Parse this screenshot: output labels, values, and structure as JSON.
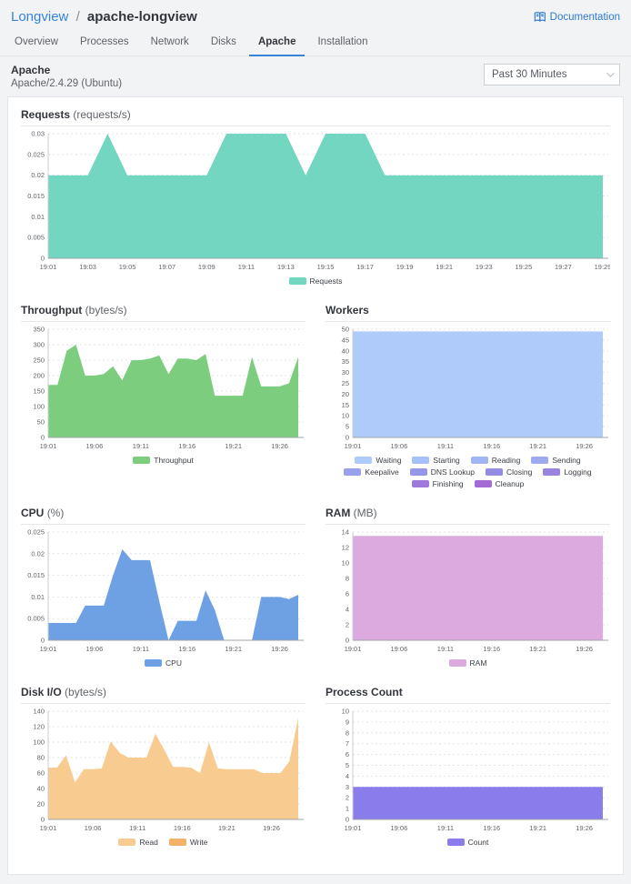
{
  "header": {
    "breadcrumb": {
      "root": "Longview",
      "separator": "/",
      "current": "apache-longview"
    },
    "documentation_label": "Documentation"
  },
  "tabs": [
    {
      "label": "Overview",
      "active": false
    },
    {
      "label": "Processes",
      "active": false
    },
    {
      "label": "Network",
      "active": false
    },
    {
      "label": "Disks",
      "active": false
    },
    {
      "label": "Apache",
      "active": true
    },
    {
      "label": "Installation",
      "active": false
    }
  ],
  "panel": {
    "title": "Apache",
    "subtitle": "Apache/2.4.29 (Ubuntu)",
    "time_range_selected": "Past 30 Minutes"
  },
  "colors": {
    "accent_blue": "#3683dc"
  },
  "chart_data": [
    {
      "id": "requests",
      "type": "area",
      "layout": "full",
      "title": "Requests",
      "unit": "(requests/s)",
      "y_max": 0.03,
      "y_ticks": [
        0,
        0.005,
        0.01,
        0.015,
        0.02,
        0.025,
        0.03
      ],
      "x_tick_step": 2,
      "x_labels": [
        "19:01",
        "19:03",
        "19:05",
        "19:07",
        "19:09",
        "19:11",
        "19:13",
        "19:15",
        "19:17",
        "19:19",
        "19:21",
        "19:23",
        "19:25",
        "19:27",
        "19:29"
      ],
      "series": [
        {
          "name": "Requests",
          "color": "#72d6c0",
          "values": [
            0.02,
            0.02,
            0.02,
            0.03,
            0.02,
            0.02,
            0.02,
            0.02,
            0.02,
            0.03,
            0.03,
            0.03,
            0.03,
            0.02,
            0.03,
            0.03,
            0.03,
            0.02,
            0.02,
            0.02,
            0.02,
            0.02,
            0.02,
            0.02,
            0.02,
            0.02,
            0.02,
            0.02,
            0.02
          ]
        }
      ]
    },
    {
      "id": "throughput",
      "type": "area",
      "layout": "half",
      "title": "Throughput",
      "unit": "(bytes/s)",
      "y_max": 350,
      "y_ticks": [
        0,
        50,
        100,
        150,
        200,
        250,
        300,
        350
      ],
      "x_tick_step": 5,
      "x_labels": [
        "19:01",
        "19:06",
        "19:11",
        "19:16",
        "19:21",
        "19:26"
      ],
      "series": [
        {
          "name": "Throughput",
          "color": "#7ccd7d",
          "values": [
            170,
            170,
            280,
            300,
            200,
            200,
            205,
            230,
            185,
            250,
            250,
            255,
            265,
            205,
            255,
            255,
            250,
            270,
            135,
            135,
            135,
            135,
            260,
            165,
            165,
            165,
            175,
            260
          ]
        }
      ]
    },
    {
      "id": "workers",
      "type": "area",
      "layout": "half",
      "title": "Workers",
      "unit": "",
      "y_max": 50,
      "y_ticks": [
        0,
        5,
        10,
        15,
        20,
        25,
        30,
        35,
        40,
        45,
        50
      ],
      "x_tick_step": 5,
      "x_labels": [
        "19:01",
        "19:06",
        "19:11",
        "19:16",
        "19:21",
        "19:26"
      ],
      "series": [
        {
          "name": "Waiting",
          "color": "#aecbfa",
          "values": [
            49,
            49,
            49,
            49,
            49,
            49,
            49,
            49,
            49,
            49,
            49,
            49,
            49,
            49,
            49,
            49,
            49,
            49,
            49,
            49,
            49,
            49,
            49,
            49,
            49,
            49,
            49,
            49
          ]
        },
        {
          "name": "Starting",
          "color": "#a7c0f7"
        },
        {
          "name": "Reading",
          "color": "#a2b5f3"
        },
        {
          "name": "Sending",
          "color": "#9daaef"
        },
        {
          "name": "Keepalive",
          "color": "#99a0ec"
        },
        {
          "name": "DNS Lookup",
          "color": "#9597e9"
        },
        {
          "name": "Closing",
          "color": "#948ce4"
        },
        {
          "name": "Logging",
          "color": "#9883e0"
        },
        {
          "name": "Finishing",
          "color": "#9c79da"
        },
        {
          "name": "Cleanup",
          "color": "#a36bd3"
        }
      ]
    },
    {
      "id": "cpu",
      "type": "area",
      "layout": "half",
      "title": "CPU",
      "unit": "(%)",
      "y_max": 0.025,
      "y_ticks": [
        0,
        0.005,
        0.01,
        0.015,
        0.02,
        0.025
      ],
      "x_tick_step": 5,
      "x_labels": [
        "19:01",
        "19:06",
        "19:11",
        "19:16",
        "19:21",
        "19:26"
      ],
      "series": [
        {
          "name": "CPU",
          "color": "#6ea1e4",
          "values": [
            0.004,
            0.004,
            0.004,
            0.004,
            0.008,
            0.008,
            0.008,
            0.015,
            0.021,
            0.0185,
            0.0185,
            0.0185,
            0.009,
            0,
            0.0045,
            0.0045,
            0.0045,
            0.0115,
            0.007,
            0,
            0,
            0,
            0,
            0.01,
            0.01,
            0.01,
            0.0095,
            0.0105
          ]
        }
      ]
    },
    {
      "id": "ram",
      "type": "area",
      "layout": "half",
      "title": "RAM",
      "unit": "(MB)",
      "y_max": 14,
      "y_ticks": [
        0,
        2,
        4,
        6,
        8,
        10,
        12,
        14
      ],
      "x_tick_step": 5,
      "x_labels": [
        "19:01",
        "19:06",
        "19:11",
        "19:16",
        "19:21",
        "19:26"
      ],
      "series": [
        {
          "name": "RAM",
          "color": "#dcaade",
          "values": [
            13.5,
            13.5,
            13.5,
            13.5,
            13.5,
            13.5,
            13.5,
            13.5,
            13.5,
            13.5,
            13.5,
            13.5,
            13.5,
            13.5,
            13.5,
            13.5,
            13.5,
            13.5,
            13.5,
            13.5,
            13.5,
            13.5,
            13.5,
            13.5,
            13.5,
            13.5,
            13.5,
            13.5
          ]
        }
      ]
    },
    {
      "id": "diskio",
      "type": "area",
      "layout": "half",
      "title": "Disk I/O",
      "unit": "(bytes/s)",
      "y_max": 140,
      "y_ticks": [
        0,
        20,
        40,
        60,
        80,
        100,
        120,
        140
      ],
      "x_tick_step": 5,
      "x_labels": [
        "19:01",
        "19:06",
        "19:11",
        "19:16",
        "19:21",
        "19:26"
      ],
      "series": [
        {
          "name": "Read",
          "color": "#f8cc90",
          "values": [
            67,
            67,
            83,
            48,
            65,
            65,
            66,
            101,
            86,
            80,
            80,
            80,
            111,
            90,
            68,
            68,
            67,
            60,
            100,
            66,
            65,
            65,
            65,
            65,
            60,
            60,
            60,
            75,
            131
          ]
        },
        {
          "name": "Write",
          "color": "#f4b269"
        }
      ]
    },
    {
      "id": "process",
      "type": "area",
      "layout": "half",
      "title": "Process Count",
      "unit": "",
      "y_max": 10,
      "y_ticks": [
        0,
        1,
        2,
        3,
        4,
        5,
        6,
        7,
        8,
        9,
        10
      ],
      "x_tick_step": 5,
      "x_labels": [
        "19:01",
        "19:06",
        "19:11",
        "19:16",
        "19:21",
        "19:26"
      ],
      "series": [
        {
          "name": "Count",
          "color": "#8b7cec",
          "values": [
            3,
            3,
            3,
            3,
            3,
            3,
            3,
            3,
            3,
            3,
            3,
            3,
            3,
            3,
            3,
            3,
            3,
            3,
            3,
            3,
            3,
            3,
            3,
            3,
            3,
            3,
            3,
            3
          ]
        }
      ]
    }
  ]
}
